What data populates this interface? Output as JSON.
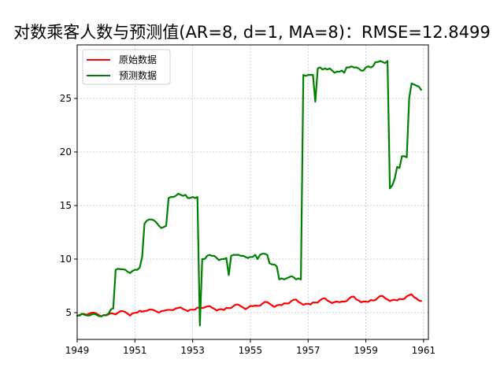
{
  "chart_data": {
    "type": "line",
    "title": "对数乘客人数与预测值(AR=8, d=1, MA=8)：RMSE=12.8499",
    "xlabel": "",
    "ylabel": "",
    "x_range": [
      "1949-01",
      "1961-03"
    ],
    "ylim": [
      2.5,
      30.0
    ],
    "x_ticks": [
      "1949",
      "1951",
      "1953",
      "1955",
      "1957",
      "1959",
      "1961"
    ],
    "y_ticks": [
      5,
      10,
      15,
      20,
      25
    ],
    "grid": true,
    "legend_position": "upper left",
    "x": [
      "1949-01",
      "1949-02",
      "1949-03",
      "1949-04",
      "1949-05",
      "1949-06",
      "1949-07",
      "1949-08",
      "1949-09",
      "1949-10",
      "1949-11",
      "1949-12",
      "1950-01",
      "1950-02",
      "1950-03",
      "1950-04",
      "1950-05",
      "1950-06",
      "1950-07",
      "1950-08",
      "1950-09",
      "1950-10",
      "1950-11",
      "1950-12",
      "1951-01",
      "1951-02",
      "1951-03",
      "1951-04",
      "1951-05",
      "1951-06",
      "1951-07",
      "1951-08",
      "1951-09",
      "1951-10",
      "1951-11",
      "1951-12",
      "1952-01",
      "1952-02",
      "1952-03",
      "1952-04",
      "1952-05",
      "1952-06",
      "1952-07",
      "1952-08",
      "1952-09",
      "1952-10",
      "1952-11",
      "1952-12",
      "1953-01",
      "1953-02",
      "1953-03",
      "1953-04",
      "1953-05",
      "1953-06",
      "1953-07",
      "1953-08",
      "1953-09",
      "1953-10",
      "1953-11",
      "1953-12",
      "1954-01",
      "1954-02",
      "1954-03",
      "1954-04",
      "1954-05",
      "1954-06",
      "1954-07",
      "1954-08",
      "1954-09",
      "1954-10",
      "1954-11",
      "1954-12",
      "1955-01",
      "1955-02",
      "1955-03",
      "1955-04",
      "1955-05",
      "1955-06",
      "1955-07",
      "1955-08",
      "1955-09",
      "1955-10",
      "1955-11",
      "1955-12",
      "1956-01",
      "1956-02",
      "1956-03",
      "1956-04",
      "1956-05",
      "1956-06",
      "1956-07",
      "1956-08",
      "1956-09",
      "1956-10",
      "1956-11",
      "1956-12",
      "1957-01",
      "1957-02",
      "1957-03",
      "1957-04",
      "1957-05",
      "1957-06",
      "1957-07",
      "1957-08",
      "1957-09",
      "1957-10",
      "1957-11",
      "1957-12",
      "1958-01",
      "1958-02",
      "1958-03",
      "1958-04",
      "1958-05",
      "1958-06",
      "1958-07",
      "1958-08",
      "1958-09",
      "1958-10",
      "1958-11",
      "1958-12",
      "1959-01",
      "1959-02",
      "1959-03",
      "1959-04",
      "1959-05",
      "1959-06",
      "1959-07",
      "1959-08",
      "1959-09",
      "1959-10",
      "1959-11",
      "1959-12",
      "1960-01",
      "1960-02",
      "1960-03",
      "1960-04",
      "1960-05",
      "1960-06",
      "1960-07",
      "1960-08",
      "1960-09",
      "1960-10",
      "1960-11",
      "1960-12"
    ],
    "series": [
      {
        "name": "原始数据",
        "color": "#ff0000",
        "values": [
          4.72,
          4.77,
          4.88,
          4.86,
          4.8,
          4.91,
          4.99,
          4.99,
          4.91,
          4.78,
          4.64,
          4.77,
          4.74,
          4.84,
          4.95,
          4.91,
          4.83,
          5.0,
          5.14,
          5.14,
          5.06,
          4.89,
          4.73,
          4.94,
          4.98,
          5.01,
          5.18,
          5.09,
          5.15,
          5.18,
          5.29,
          5.29,
          5.21,
          5.11,
          5.0,
          5.14,
          5.18,
          5.23,
          5.27,
          5.24,
          5.25,
          5.39,
          5.44,
          5.49,
          5.34,
          5.25,
          5.15,
          5.27,
          5.28,
          5.28,
          5.46,
          5.46,
          5.43,
          5.49,
          5.58,
          5.61,
          5.47,
          5.35,
          5.19,
          5.3,
          5.32,
          5.24,
          5.45,
          5.42,
          5.44,
          5.62,
          5.76,
          5.75,
          5.6,
          5.47,
          5.32,
          5.46,
          5.63,
          5.6,
          5.66,
          5.64,
          5.65,
          5.84,
          6.0,
          5.98,
          5.82,
          5.68,
          5.53,
          5.68,
          5.73,
          5.7,
          5.87,
          5.85,
          5.87,
          6.08,
          6.2,
          6.22,
          6.0,
          5.88,
          5.73,
          5.82,
          5.83,
          5.76,
          5.95,
          5.94,
          5.95,
          6.16,
          6.31,
          6.33,
          6.14,
          6.01,
          5.89,
          5.99,
          6.03,
          5.97,
          6.04,
          6.03,
          6.08,
          6.3,
          6.48,
          6.5,
          6.23,
          6.13,
          5.97,
          6.04,
          6.03,
          6.0,
          6.18,
          6.13,
          6.18,
          6.39,
          6.56,
          6.55,
          6.35,
          6.23,
          6.08,
          6.18,
          6.2,
          6.13,
          6.28,
          6.24,
          6.29,
          6.52,
          6.63,
          6.71,
          6.45,
          6.32,
          6.14,
          6.09
        ]
      },
      {
        "name": "预测数据",
        "color": "#008000",
        "values": [
          4.72,
          4.72,
          4.9,
          4.8,
          4.74,
          4.73,
          4.82,
          4.9,
          4.8,
          4.68,
          4.66,
          4.76,
          4.78,
          4.9,
          5.3,
          5.4,
          9.0,
          9.1,
          9.05,
          9.05,
          9.0,
          8.8,
          8.7,
          8.9,
          9.0,
          9.0,
          9.2,
          10.2,
          13.3,
          13.6,
          13.7,
          13.7,
          13.6,
          13.4,
          13.1,
          12.9,
          13.0,
          13.1,
          15.7,
          15.8,
          15.8,
          15.9,
          16.1,
          16.0,
          15.9,
          16.0,
          15.7,
          15.7,
          15.8,
          15.7,
          15.8,
          3.8,
          10.0,
          10.0,
          10.3,
          10.4,
          10.3,
          10.3,
          10.1,
          9.9,
          10.0,
          10.0,
          10.1,
          8.5,
          10.3,
          10.4,
          10.4,
          10.4,
          10.3,
          10.3,
          10.2,
          10.1,
          10.2,
          10.2,
          10.4,
          10.0,
          10.4,
          10.5,
          10.5,
          10.4,
          9.6,
          9.5,
          9.5,
          9.3,
          8.1,
          8.2,
          8.1,
          8.2,
          8.3,
          8.4,
          8.3,
          8.1,
          8.2,
          8.1,
          27.2,
          27.1,
          27.2,
          27.2,
          27.2,
          24.7,
          27.8,
          27.9,
          27.7,
          27.8,
          27.7,
          27.8,
          27.6,
          27.4,
          27.5,
          27.5,
          27.6,
          27.4,
          27.9,
          27.9,
          28.0,
          27.9,
          27.9,
          27.8,
          27.6,
          27.6,
          27.9,
          28.0,
          27.9,
          28.0,
          28.4,
          28.4,
          28.5,
          28.4,
          28.3,
          28.5,
          16.6,
          16.9,
          17.5,
          18.6,
          18.5,
          19.6,
          19.6,
          19.5,
          25.0,
          26.4,
          26.3,
          26.2,
          26.1,
          25.8
        ]
      }
    ]
  }
}
